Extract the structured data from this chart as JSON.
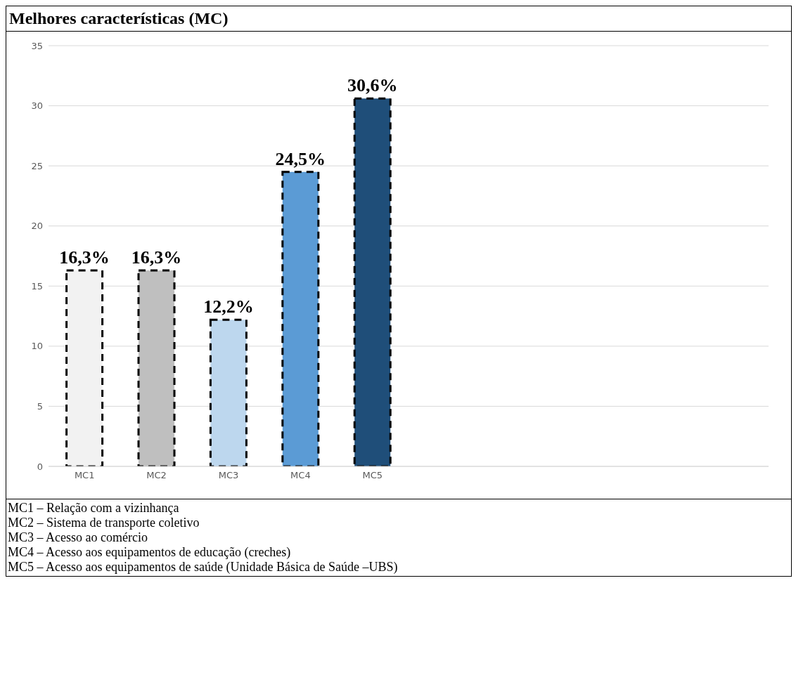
{
  "chart_data": {
    "type": "bar",
    "title": "Melhores características (MC)",
    "categories": [
      "MC1",
      "MC2",
      "MC3",
      "MC4",
      "MC5",
      null,
      null,
      null,
      null,
      null
    ],
    "values": [
      16.3,
      16.3,
      12.2,
      24.5,
      30.6,
      null,
      null,
      null,
      null,
      null
    ],
    "colors": [
      "#f2f2f2",
      "#bfbfbf",
      "#bdd7ee",
      "#5b9bd5",
      "#1f4e79",
      null,
      null,
      null,
      null,
      null
    ],
    "value_labels": [
      "16,3%",
      "16,3%",
      "12,2%",
      "24,5%",
      "30,6%",
      null,
      null,
      null,
      null,
      null
    ],
    "ylim": [
      0,
      35
    ],
    "yticks": [
      0,
      5,
      10,
      15,
      20,
      25,
      30,
      35
    ],
    "grid": "y",
    "annotations": [
      "MC1 – Relação com a vizinhança",
      "MC2 – Sistema de transporte coletivo",
      "MC3 – Acesso ao comércio",
      "MC4 – Acesso aos equipamentos de educação (creches)",
      "MC5 – Acesso aos equipamentos de saúde (Unidade Básica de Saúde –UBS)"
    ]
  }
}
